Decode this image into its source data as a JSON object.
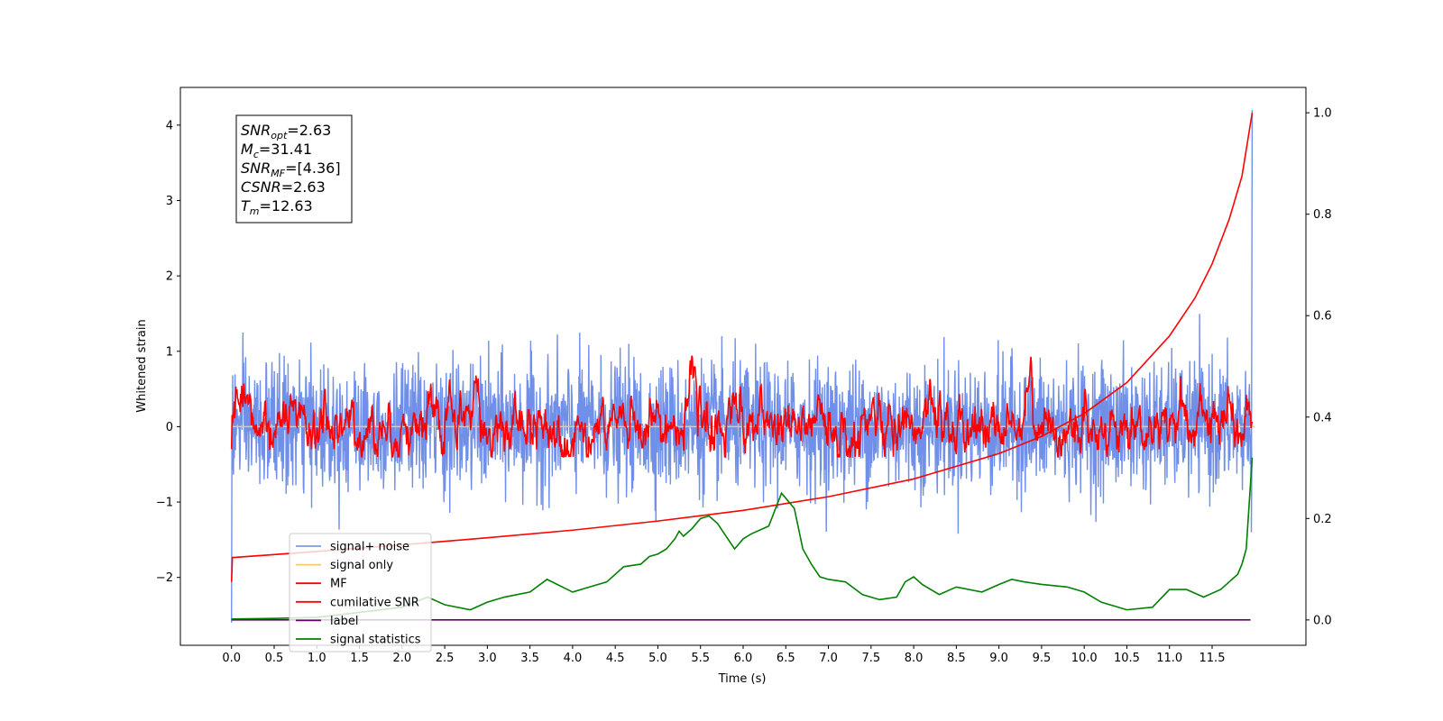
{
  "colors": {
    "signal_noise": "#6f8fe8",
    "signal_only": "#f5c86a",
    "mf": "#ff0000",
    "csnr": "#ff0000",
    "label": "#660066",
    "signal_statistics": "#008000"
  },
  "chart_data": {
    "type": "line",
    "title": "",
    "xlabel": "Time (s)",
    "ylabel": "Whitened strain",
    "y2label": "",
    "xlim": [
      -0.6,
      12.6
    ],
    "ylim": [
      -2.9,
      4.5
    ],
    "y2lim": [
      -0.05,
      1.05
    ],
    "grid": false,
    "legend_position": "lower-left",
    "x_ticks": [
      "0.0",
      "0.5",
      "1.0",
      "1.5",
      "2.0",
      "2.5",
      "3.0",
      "3.5",
      "4.0",
      "4.5",
      "5.0",
      "5.5",
      "6.0",
      "6.5",
      "7.0",
      "7.5",
      "8.0",
      "8.5",
      "9.0",
      "9.5",
      "10.0",
      "10.5",
      "11.0",
      "11.5"
    ],
    "y_ticks": [
      "−2",
      "−1",
      "0",
      "1",
      "2",
      "3",
      "4"
    ],
    "y2_ticks": [
      "0.0",
      "0.2",
      "0.4",
      "0.6",
      "0.8",
      "1.0"
    ],
    "annotation": {
      "lines": [
        {
          "sym": "SNR",
          "sub": "opt",
          "text": "=2.63"
        },
        {
          "sym": "M",
          "sub": "c",
          "text": "=31.41"
        },
        {
          "sym": "SNR",
          "sub": "MF",
          "text": "=[4.36]"
        },
        {
          "sym": "CSNR",
          "sub": "",
          "text": "=2.63"
        },
        {
          "sym": "T",
          "sub": "m",
          "text": "=12.63"
        }
      ]
    },
    "series": [
      {
        "name": "signal+ noise",
        "axis": "left",
        "kind": "noise",
        "summary": {
          "x_start": 0.0,
          "x_end": 11.97,
          "center": 0.0,
          "std": 0.42,
          "max": 4.2,
          "min": -2.6
        }
      },
      {
        "name": "signal only",
        "axis": "left",
        "x": [
          0,
          12
        ],
        "y": [
          0,
          0
        ]
      },
      {
        "name": "MF",
        "axis": "left",
        "kind": "noisy-smooth",
        "summary": {
          "x_start": 0.0,
          "x_end": 11.97,
          "center": 0.0,
          "std": 0.2,
          "max": 1.0,
          "min": -0.4
        },
        "peaks": [
          [
            2.85,
            0.65
          ],
          [
            5.4,
            0.7
          ],
          [
            5.9,
            0.7
          ],
          [
            9.35,
            0.9
          ],
          [
            11.15,
            0.55
          ]
        ]
      },
      {
        "name": "cumilative SNR",
        "axis": "right",
        "x": [
          0.0,
          0.01,
          1.0,
          2.0,
          3.0,
          4.0,
          5.0,
          6.0,
          7.0,
          8.0,
          9.0,
          9.5,
          10.0,
          10.5,
          11.0,
          11.3,
          11.5,
          11.7,
          11.85,
          11.97
        ],
        "y": [
          0.075,
          0.123,
          0.135,
          0.148,
          0.162,
          0.177,
          0.195,
          0.216,
          0.243,
          0.278,
          0.328,
          0.362,
          0.407,
          0.468,
          0.56,
          0.635,
          0.702,
          0.79,
          0.875,
          1.0
        ]
      },
      {
        "name": "label",
        "axis": "right",
        "x": [
          0.0,
          11.95
        ],
        "y": [
          0.0,
          0.0
        ]
      },
      {
        "name": "signal statistics",
        "axis": "right",
        "x": [
          0.0,
          0.5,
          1.0,
          1.5,
          2.0,
          2.3,
          2.5,
          2.8,
          3.0,
          3.2,
          3.5,
          3.7,
          4.0,
          4.2,
          4.4,
          4.5,
          4.6,
          4.8,
          4.9,
          5.0,
          5.1,
          5.2,
          5.25,
          5.3,
          5.4,
          5.5,
          5.6,
          5.7,
          5.8,
          5.9,
          6.0,
          6.1,
          6.3,
          6.45,
          6.6,
          6.7,
          6.8,
          6.9,
          7.0,
          7.2,
          7.4,
          7.6,
          7.8,
          7.9,
          8.0,
          8.1,
          8.3,
          8.5,
          8.8,
          9.0,
          9.15,
          9.3,
          9.5,
          9.8,
          10.0,
          10.2,
          10.5,
          10.8,
          11.0,
          11.2,
          11.4,
          11.6,
          11.7,
          11.8,
          11.85,
          11.9,
          11.97
        ],
        "y": [
          0.002,
          0.003,
          0.005,
          0.015,
          0.025,
          0.045,
          0.03,
          0.02,
          0.035,
          0.045,
          0.055,
          0.08,
          0.055,
          0.065,
          0.075,
          0.09,
          0.105,
          0.11,
          0.125,
          0.13,
          0.14,
          0.16,
          0.175,
          0.165,
          0.18,
          0.2,
          0.205,
          0.19,
          0.165,
          0.14,
          0.16,
          0.17,
          0.185,
          0.25,
          0.22,
          0.14,
          0.11,
          0.085,
          0.08,
          0.075,
          0.05,
          0.04,
          0.045,
          0.075,
          0.085,
          0.07,
          0.05,
          0.065,
          0.055,
          0.07,
          0.08,
          0.075,
          0.07,
          0.065,
          0.055,
          0.035,
          0.02,
          0.025,
          0.06,
          0.06,
          0.045,
          0.06,
          0.075,
          0.09,
          0.11,
          0.14,
          0.32
        ]
      }
    ]
  }
}
